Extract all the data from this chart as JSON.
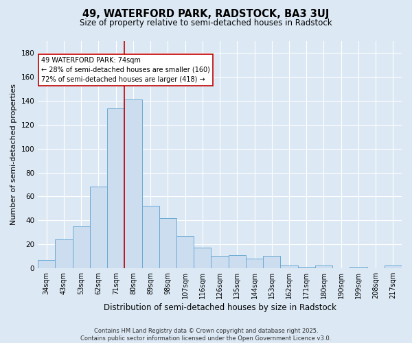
{
  "title1": "49, WATERFORD PARK, RADSTOCK, BA3 3UJ",
  "title2": "Size of property relative to semi-detached houses in Radstock",
  "xlabel": "Distribution of semi-detached houses by size in Radstock",
  "ylabel": "Number of semi-detached properties",
  "categories": [
    "34sqm",
    "43sqm",
    "53sqm",
    "62sqm",
    "71sqm",
    "80sqm",
    "89sqm",
    "98sqm",
    "107sqm",
    "116sqm",
    "126sqm",
    "135sqm",
    "144sqm",
    "153sqm",
    "162sqm",
    "171sqm",
    "180sqm",
    "190sqm",
    "199sqm",
    "208sqm",
    "217sqm"
  ],
  "values": [
    7,
    24,
    35,
    68,
    134,
    141,
    52,
    42,
    27,
    17,
    10,
    11,
    8,
    10,
    2,
    1,
    2,
    0,
    1,
    0,
    2
  ],
  "bar_color": "#ccddf0",
  "bar_edge_color": "#6aaad4",
  "vline_x_idx": 4,
  "vline_color": "#c00000",
  "annotation_text": "49 WATERFORD PARK: 74sqm\n← 28% of semi-detached houses are smaller (160)\n72% of semi-detached houses are larger (418) →",
  "annotation_box_color": "#ffffff",
  "annotation_box_edge": "#c00000",
  "ylim": [
    0,
    190
  ],
  "yticks": [
    0,
    20,
    40,
    60,
    80,
    100,
    120,
    140,
    160,
    180
  ],
  "footer1": "Contains HM Land Registry data © Crown copyright and database right 2025.",
  "footer2": "Contains public sector information licensed under the Open Government Licence v3.0.",
  "bg_color": "#dce9f5",
  "plot_bg_color": "#dce9f5"
}
